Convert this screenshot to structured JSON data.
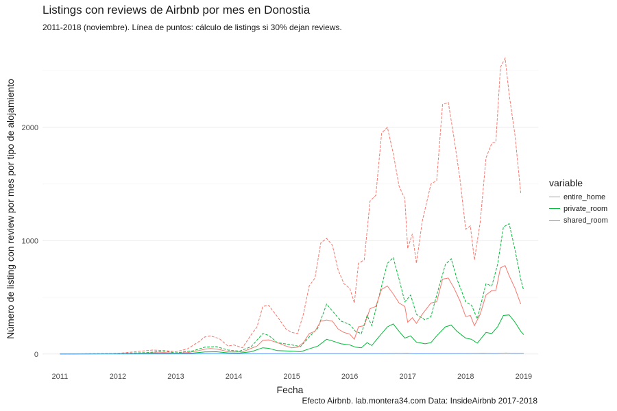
{
  "chart_data": {
    "type": "line",
    "title": "Listings con reviews de Airbnb por mes en Donostia",
    "subtitle": "2011-2018 (noviembre). Línea de puntos: cálculo de listings si 30% dejan reviews.",
    "caption": "Efecto Airbnb. lab.montera34.com Data: InsideAirbnb 2017-2018",
    "xlabel": "Fecha",
    "ylabel": "Número de listing con review por mes por tipo de alojamiento",
    "xlim": [
      2010.7,
      2019.25
    ],
    "ylim": [
      -80,
      2700
    ],
    "x_ticks": [
      "2011",
      "2012",
      "2013",
      "2014",
      "2015",
      "2016",
      "2017",
      "2018",
      "2019"
    ],
    "y_ticks": [
      "0",
      "1000",
      "2000"
    ],
    "y_tick_values": [
      0,
      1000,
      2000
    ],
    "grid": true,
    "legend": {
      "title": "variable",
      "position": "right"
    },
    "series": [
      {
        "name": "entire_home",
        "color": "#F8766D",
        "points": [
          [
            2011.0,
            0
          ],
          [
            2011.5,
            1
          ],
          [
            2012.0,
            2
          ],
          [
            2012.3,
            5
          ],
          [
            2012.6,
            10
          ],
          [
            2012.8,
            12
          ],
          [
            2013.0,
            7
          ],
          [
            2013.2,
            12
          ],
          [
            2013.4,
            30
          ],
          [
            2013.5,
            42
          ],
          [
            2013.6,
            48
          ],
          [
            2013.75,
            40
          ],
          [
            2013.9,
            20
          ],
          [
            2014.0,
            22
          ],
          [
            2014.15,
            18
          ],
          [
            2014.3,
            50
          ],
          [
            2014.4,
            70
          ],
          [
            2014.5,
            120
          ],
          [
            2014.6,
            125
          ],
          [
            2014.75,
            100
          ],
          [
            2014.9,
            70
          ],
          [
            2015.0,
            55
          ],
          [
            2015.1,
            60
          ],
          [
            2015.2,
            100
          ],
          [
            2015.3,
            180
          ],
          [
            2015.4,
            200
          ],
          [
            2015.5,
            290
          ],
          [
            2015.6,
            300
          ],
          [
            2015.7,
            290
          ],
          [
            2015.8,
            220
          ],
          [
            2015.9,
            190
          ],
          [
            2016.0,
            175
          ],
          [
            2016.08,
            130
          ],
          [
            2016.15,
            240
          ],
          [
            2016.25,
            250
          ],
          [
            2016.35,
            400
          ],
          [
            2016.45,
            420
          ],
          [
            2016.55,
            570
          ],
          [
            2016.65,
            600
          ],
          [
            2016.75,
            530
          ],
          [
            2016.85,
            450
          ],
          [
            2016.95,
            420
          ],
          [
            2017.0,
            280
          ],
          [
            2017.08,
            320
          ],
          [
            2017.15,
            270
          ],
          [
            2017.25,
            350
          ],
          [
            2017.4,
            450
          ],
          [
            2017.5,
            460
          ],
          [
            2017.6,
            660
          ],
          [
            2017.7,
            670
          ],
          [
            2017.8,
            580
          ],
          [
            2017.9,
            470
          ],
          [
            2018.0,
            330
          ],
          [
            2018.08,
            340
          ],
          [
            2018.15,
            250
          ],
          [
            2018.25,
            350
          ],
          [
            2018.35,
            520
          ],
          [
            2018.45,
            560
          ],
          [
            2018.52,
            560
          ],
          [
            2018.6,
            760
          ],
          [
            2018.68,
            780
          ],
          [
            2018.75,
            690
          ],
          [
            2018.85,
            580
          ],
          [
            2018.95,
            440
          ]
        ]
      },
      {
        "name": "private_room",
        "color": "#00BA38",
        "points": [
          [
            2011.0,
            0
          ],
          [
            2011.5,
            1
          ],
          [
            2012.0,
            2
          ],
          [
            2012.5,
            4
          ],
          [
            2012.8,
            7
          ],
          [
            2013.0,
            3
          ],
          [
            2013.3,
            8
          ],
          [
            2013.5,
            18
          ],
          [
            2013.7,
            20
          ],
          [
            2013.9,
            10
          ],
          [
            2014.1,
            8
          ],
          [
            2014.3,
            20
          ],
          [
            2014.5,
            55
          ],
          [
            2014.6,
            50
          ],
          [
            2014.75,
            30
          ],
          [
            2015.0,
            25
          ],
          [
            2015.15,
            20
          ],
          [
            2015.3,
            45
          ],
          [
            2015.45,
            70
          ],
          [
            2015.6,
            130
          ],
          [
            2015.7,
            115
          ],
          [
            2015.85,
            90
          ],
          [
            2016.0,
            80
          ],
          [
            2016.1,
            60
          ],
          [
            2016.2,
            55
          ],
          [
            2016.3,
            100
          ],
          [
            2016.38,
            75
          ],
          [
            2016.5,
            150
          ],
          [
            2016.65,
            240
          ],
          [
            2016.75,
            265
          ],
          [
            2016.85,
            200
          ],
          [
            2016.95,
            140
          ],
          [
            2017.05,
            160
          ],
          [
            2017.15,
            105
          ],
          [
            2017.3,
            90
          ],
          [
            2017.4,
            100
          ],
          [
            2017.5,
            160
          ],
          [
            2017.65,
            240
          ],
          [
            2017.75,
            255
          ],
          [
            2017.85,
            200
          ],
          [
            2018.0,
            140
          ],
          [
            2018.1,
            130
          ],
          [
            2018.2,
            95
          ],
          [
            2018.35,
            190
          ],
          [
            2018.45,
            180
          ],
          [
            2018.55,
            240
          ],
          [
            2018.65,
            340
          ],
          [
            2018.75,
            345
          ],
          [
            2018.85,
            280
          ],
          [
            2018.95,
            200
          ],
          [
            2019.0,
            170
          ]
        ]
      },
      {
        "name": "shared_room",
        "color": "#619CFF",
        "points": [
          [
            2011.0,
            0
          ],
          [
            2012.0,
            0
          ],
          [
            2013.0,
            1
          ],
          [
            2014.0,
            2
          ],
          [
            2015.0,
            3
          ],
          [
            2016.0,
            4
          ],
          [
            2016.5,
            3
          ],
          [
            2017.0,
            6
          ],
          [
            2017.1,
            2
          ],
          [
            2017.5,
            3
          ],
          [
            2018.0,
            4
          ],
          [
            2018.3,
            6
          ],
          [
            2018.5,
            4
          ],
          [
            2018.7,
            8
          ],
          [
            2018.8,
            5
          ],
          [
            2019.0,
            6
          ]
        ]
      },
      {
        "name": "entire_home_30pct",
        "color": "#F8766D",
        "dashed": true,
        "points": [
          [
            2011.0,
            0
          ],
          [
            2011.5,
            3
          ],
          [
            2012.0,
            5
          ],
          [
            2012.3,
            20
          ],
          [
            2012.6,
            35
          ],
          [
            2012.8,
            30
          ],
          [
            2013.0,
            20
          ],
          [
            2013.2,
            45
          ],
          [
            2013.4,
            110
          ],
          [
            2013.5,
            150
          ],
          [
            2013.6,
            160
          ],
          [
            2013.75,
            135
          ],
          [
            2013.9,
            70
          ],
          [
            2014.0,
            80
          ],
          [
            2014.15,
            55
          ],
          [
            2014.3,
            170
          ],
          [
            2014.4,
            240
          ],
          [
            2014.5,
            420
          ],
          [
            2014.6,
            430
          ],
          [
            2014.75,
            330
          ],
          [
            2014.9,
            220
          ],
          [
            2015.0,
            190
          ],
          [
            2015.1,
            180
          ],
          [
            2015.2,
            350
          ],
          [
            2015.3,
            600
          ],
          [
            2015.4,
            670
          ],
          [
            2015.5,
            980
          ],
          [
            2015.6,
            1020
          ],
          [
            2015.7,
            960
          ],
          [
            2015.8,
            740
          ],
          [
            2015.9,
            620
          ],
          [
            2016.0,
            580
          ],
          [
            2016.08,
            450
          ],
          [
            2016.15,
            800
          ],
          [
            2016.25,
            830
          ],
          [
            2016.35,
            1350
          ],
          [
            2016.45,
            1400
          ],
          [
            2016.55,
            1950
          ],
          [
            2016.65,
            2000
          ],
          [
            2016.75,
            1770
          ],
          [
            2016.85,
            1480
          ],
          [
            2016.95,
            1370
          ],
          [
            2017.0,
            930
          ],
          [
            2017.08,
            1060
          ],
          [
            2017.15,
            800
          ],
          [
            2017.25,
            1170
          ],
          [
            2017.4,
            1500
          ],
          [
            2017.5,
            1530
          ],
          [
            2017.6,
            2200
          ],
          [
            2017.7,
            2220
          ],
          [
            2017.8,
            1900
          ],
          [
            2017.9,
            1550
          ],
          [
            2018.0,
            1100
          ],
          [
            2018.08,
            1130
          ],
          [
            2018.15,
            830
          ],
          [
            2018.25,
            1160
          ],
          [
            2018.35,
            1730
          ],
          [
            2018.45,
            1860
          ],
          [
            2018.52,
            1870
          ],
          [
            2018.6,
            2530
          ],
          [
            2018.68,
            2610
          ],
          [
            2018.75,
            2290
          ],
          [
            2018.85,
            1930
          ],
          [
            2018.95,
            1420
          ]
        ]
      },
      {
        "name": "private_room_30pct",
        "color": "#00BA38",
        "dashed": true,
        "points": [
          [
            2011.0,
            0
          ],
          [
            2011.5,
            2
          ],
          [
            2012.0,
            5
          ],
          [
            2012.5,
            12
          ],
          [
            2012.8,
            25
          ],
          [
            2013.0,
            10
          ],
          [
            2013.3,
            28
          ],
          [
            2013.5,
            60
          ],
          [
            2013.7,
            65
          ],
          [
            2013.9,
            35
          ],
          [
            2014.1,
            25
          ],
          [
            2014.3,
            65
          ],
          [
            2014.5,
            180
          ],
          [
            2014.6,
            165
          ],
          [
            2014.75,
            100
          ],
          [
            2015.0,
            80
          ],
          [
            2015.15,
            65
          ],
          [
            2015.3,
            150
          ],
          [
            2015.45,
            230
          ],
          [
            2015.6,
            440
          ],
          [
            2015.7,
            380
          ],
          [
            2015.85,
            290
          ],
          [
            2016.0,
            260
          ],
          [
            2016.1,
            200
          ],
          [
            2016.2,
            180
          ],
          [
            2016.3,
            340
          ],
          [
            2016.38,
            250
          ],
          [
            2016.5,
            500
          ],
          [
            2016.65,
            800
          ],
          [
            2016.75,
            850
          ],
          [
            2016.85,
            660
          ],
          [
            2016.95,
            460
          ],
          [
            2017.05,
            520
          ],
          [
            2017.15,
            350
          ],
          [
            2017.3,
            300
          ],
          [
            2017.4,
            330
          ],
          [
            2017.5,
            520
          ],
          [
            2017.65,
            790
          ],
          [
            2017.75,
            840
          ],
          [
            2017.85,
            660
          ],
          [
            2018.0,
            460
          ],
          [
            2018.1,
            430
          ],
          [
            2018.2,
            310
          ],
          [
            2018.35,
            620
          ],
          [
            2018.45,
            600
          ],
          [
            2018.55,
            790
          ],
          [
            2018.65,
            1120
          ],
          [
            2018.75,
            1150
          ],
          [
            2018.85,
            920
          ],
          [
            2018.95,
            660
          ],
          [
            2019.0,
            560
          ]
        ]
      }
    ]
  }
}
